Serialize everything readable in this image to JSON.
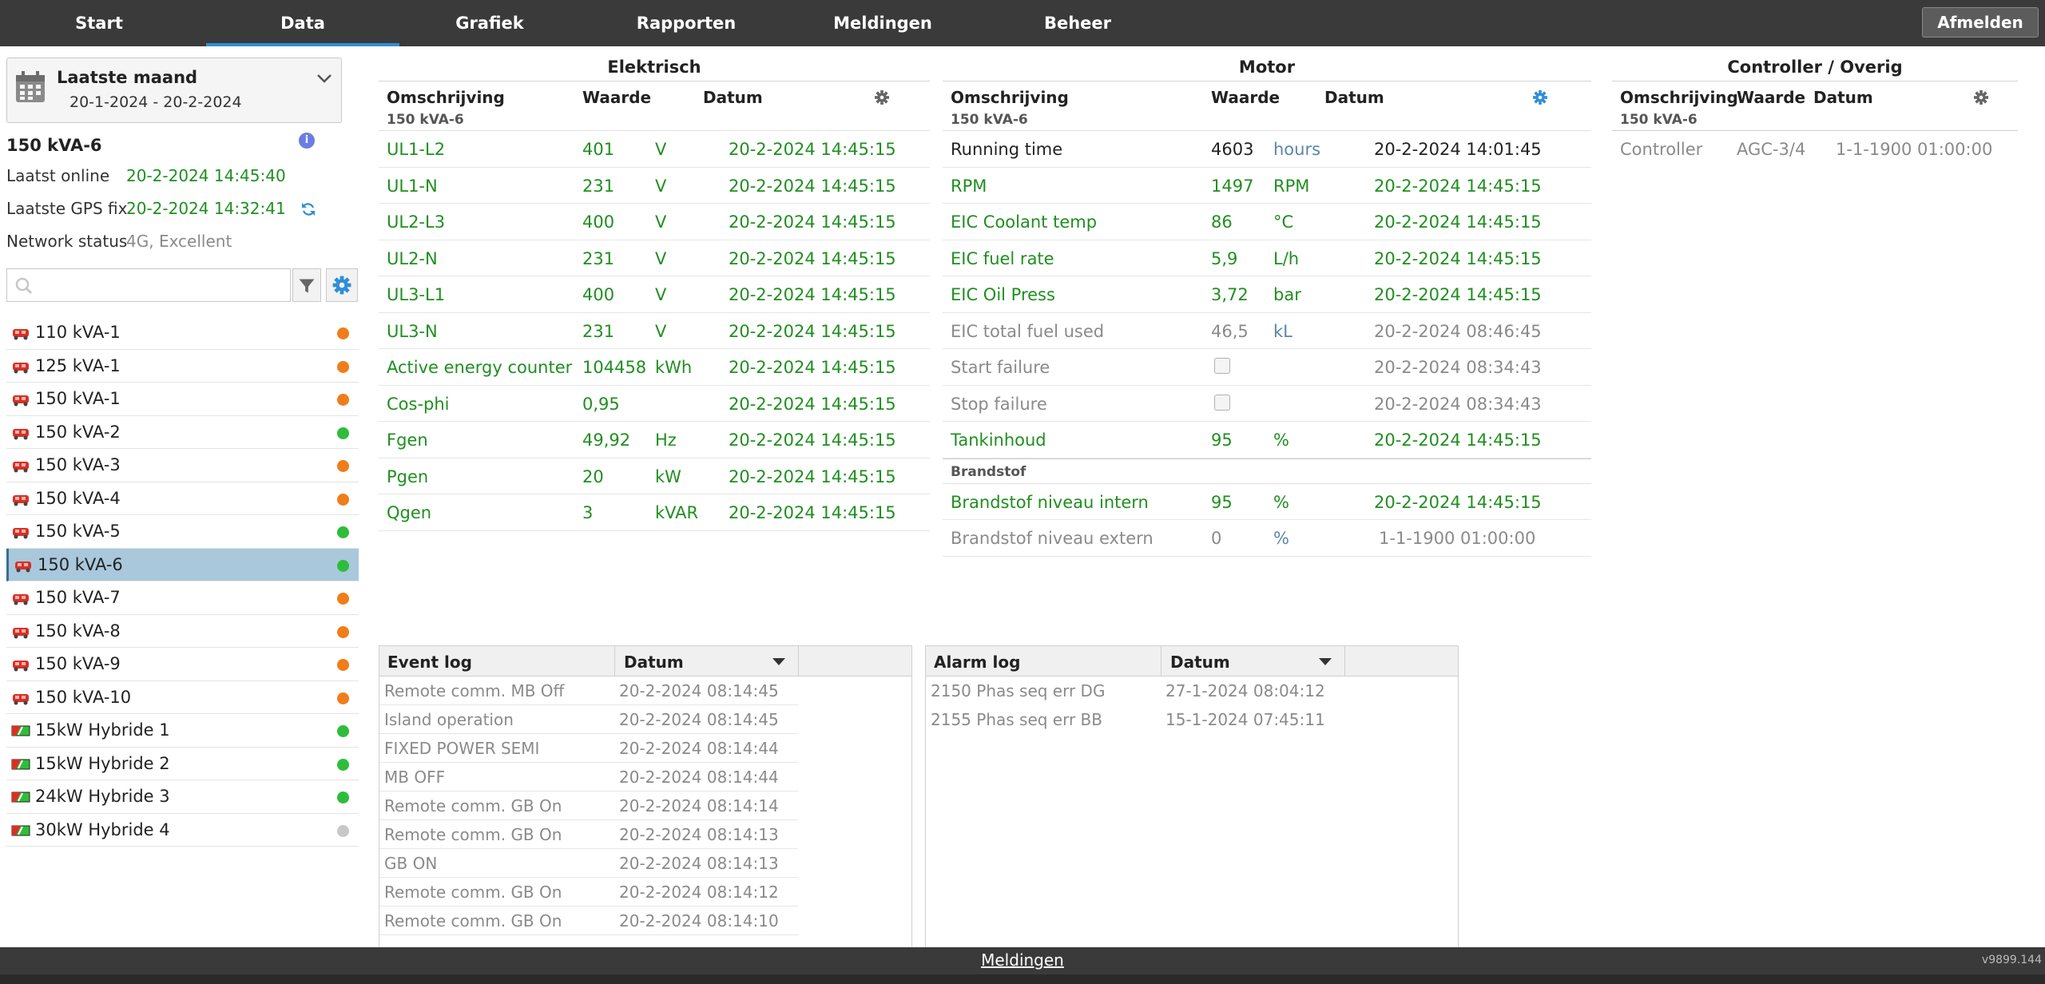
{
  "nav": {
    "tabs": [
      {
        "label": "Start"
      },
      {
        "label": "Data"
      },
      {
        "label": "Grafiek"
      },
      {
        "label": "Rapporten"
      },
      {
        "label": "Meldingen"
      },
      {
        "label": "Beheer"
      }
    ],
    "active": "Data",
    "logout_label": "Afmelden"
  },
  "sidebar": {
    "period_title": "Laatste maand",
    "period_range": "20-1-2024 - 20-2-2024",
    "unit_name": "150 kVA-6",
    "info_icon": "i",
    "last_online_label": "Laatst online",
    "last_online_value": "20-2-2024 14:45:40",
    "last_gps_label": "Laatste GPS fix",
    "last_gps_value": "20-2-2024 14:32:41",
    "network_label": "Network status",
    "network_value": "4G, Excellent",
    "search_placeholder": "",
    "units": [
      {
        "label": "110 kVA-1",
        "icon": "generator-icon",
        "status": "orange"
      },
      {
        "label": "125 kVA-1",
        "icon": "generator-icon",
        "status": "orange"
      },
      {
        "label": "150 kVA-1",
        "icon": "generator-icon",
        "status": "orange"
      },
      {
        "label": "150 kVA-2",
        "icon": "generator-icon",
        "status": "green"
      },
      {
        "label": "150 kVA-3",
        "icon": "generator-icon",
        "status": "orange"
      },
      {
        "label": "150 kVA-4",
        "icon": "generator-icon",
        "status": "orange"
      },
      {
        "label": "150 kVA-5",
        "icon": "generator-icon",
        "status": "green"
      },
      {
        "label": "150 kVA-6",
        "icon": "generator-icon",
        "status": "green",
        "selected": true
      },
      {
        "label": "150 kVA-7",
        "icon": "generator-icon",
        "status": "orange"
      },
      {
        "label": "150 kVA-8",
        "icon": "generator-icon",
        "status": "orange"
      },
      {
        "label": "150 kVA-9",
        "icon": "generator-icon",
        "status": "orange"
      },
      {
        "label": "150 kVA-10",
        "icon": "generator-icon",
        "status": "orange"
      },
      {
        "label": "15kW Hybride 1",
        "icon": "hybrid-icon",
        "status": "green"
      },
      {
        "label": "15kW Hybride 2",
        "icon": "hybrid-icon",
        "status": "green"
      },
      {
        "label": "24kW Hybride 3",
        "icon": "hybrid-icon",
        "status": "green"
      },
      {
        "label": "30kW Hybride 4",
        "icon": "hybrid-icon",
        "status": "grey"
      }
    ]
  },
  "colors": {
    "status_orange": "#f07d1a",
    "status_green": "#2ebd3a",
    "status_grey": "#c8c8c8",
    "value_green": "#1f8f1f",
    "value_grey": "#8a8a8a",
    "accent_blue": "#2f8fd6"
  },
  "elektrisch": {
    "title": "Elektrisch",
    "headers": {
      "desc": "Omschrijving",
      "value": "Waarde",
      "date": "Datum"
    },
    "group": "150 kVA-6",
    "rows": [
      {
        "desc": "UL1-L2",
        "value": "401",
        "unit": "V",
        "date": "20-2-2024 14:45:15",
        "color": "green"
      },
      {
        "desc": "UL1-N",
        "value": "231",
        "unit": "V",
        "date": "20-2-2024 14:45:15",
        "color": "green"
      },
      {
        "desc": "UL2-L3",
        "value": "400",
        "unit": "V",
        "date": "20-2-2024 14:45:15",
        "color": "green"
      },
      {
        "desc": "UL2-N",
        "value": "231",
        "unit": "V",
        "date": "20-2-2024 14:45:15",
        "color": "green"
      },
      {
        "desc": "UL3-L1",
        "value": "400",
        "unit": "V",
        "date": "20-2-2024 14:45:15",
        "color": "green"
      },
      {
        "desc": "UL3-N",
        "value": "231",
        "unit": "V",
        "date": "20-2-2024 14:45:15",
        "color": "green"
      },
      {
        "desc": "Active energy counter",
        "value": "104458",
        "unit": "kWh",
        "date": "20-2-2024 14:45:15",
        "color": "green"
      },
      {
        "desc": "Cos-phi",
        "value": "0,95",
        "unit": "",
        "date": "20-2-2024 14:45:15",
        "color": "green"
      },
      {
        "desc": "Fgen",
        "value": "49,92",
        "unit": "Hz",
        "date": "20-2-2024 14:45:15",
        "color": "green"
      },
      {
        "desc": "Pgen",
        "value": "20",
        "unit": "kW",
        "date": "20-2-2024 14:45:15",
        "color": "green"
      },
      {
        "desc": "Qgen",
        "value": "3",
        "unit": "kVAR",
        "date": "20-2-2024 14:45:15",
        "color": "green"
      }
    ]
  },
  "motor": {
    "title": "Motor",
    "headers": {
      "desc": "Omschrijving",
      "value": "Waarde",
      "date": "Datum"
    },
    "group": "150 kVA-6",
    "rows": [
      {
        "desc": "Running time",
        "value": "4603",
        "unit": "hours",
        "date": "20-2-2024 14:01:45",
        "color": "dark"
      },
      {
        "desc": "RPM",
        "value": "1497",
        "unit": "RPM",
        "date": "20-2-2024 14:45:15",
        "color": "green"
      },
      {
        "desc": "EIC Coolant temp",
        "value": "86",
        "unit": "°C",
        "date": "20-2-2024 14:45:15",
        "color": "green"
      },
      {
        "desc": "EIC fuel rate",
        "value": "5,9",
        "unit": "L/h",
        "date": "20-2-2024 14:45:15",
        "color": "green"
      },
      {
        "desc": "EIC Oil Press",
        "value": "3,72",
        "unit": "bar",
        "date": "20-2-2024 14:45:15",
        "color": "green"
      },
      {
        "desc": "EIC total fuel used",
        "value": "46,5",
        "unit": "kL",
        "date": "20-2-2024 08:46:45",
        "color": "grey"
      },
      {
        "desc": "Start failure",
        "value": "",
        "checkbox": true,
        "unit": "",
        "date": "20-2-2024 08:34:43",
        "color": "grey"
      },
      {
        "desc": "Stop failure",
        "value": "",
        "checkbox": true,
        "unit": "",
        "date": "20-2-2024 08:34:43",
        "color": "grey"
      },
      {
        "desc": "Tankinhoud",
        "value": "95",
        "unit": "%",
        "date": "20-2-2024 14:45:15",
        "color": "green"
      }
    ],
    "group2": "Brandstof",
    "rows2": [
      {
        "desc": "Brandstof niveau intern",
        "value": "95",
        "unit": "%",
        "date": "20-2-2024 14:45:15",
        "color": "green"
      },
      {
        "desc": "Brandstof niveau extern",
        "value": "0",
        "unit": "%",
        "date": "1-1-1900 01:00:00",
        "color": "grey"
      }
    ]
  },
  "controller": {
    "title": "Controller / Overig",
    "headers": {
      "desc": "Omschrijving",
      "value": "Waarde",
      "date": "Datum"
    },
    "group": "150 kVA-6",
    "rows": [
      {
        "desc": "Controller",
        "value": "AGC-3/4",
        "date": "1-1-1900 01:00:00",
        "color": "grey"
      }
    ]
  },
  "event_log": {
    "col1": "Event log",
    "col2": "Datum",
    "rows": [
      {
        "text": "Remote comm. MB Off",
        "date": "20-2-2024 08:14:45"
      },
      {
        "text": "Island operation",
        "date": "20-2-2024 08:14:45"
      },
      {
        "text": "FIXED POWER     SEMI",
        "date": "20-2-2024 08:14:44"
      },
      {
        "text": "MB OFF",
        "date": "20-2-2024 08:14:44"
      },
      {
        "text": "Remote comm. GB On",
        "date": "20-2-2024 08:14:14"
      },
      {
        "text": "Remote comm. GB On",
        "date": "20-2-2024 08:14:13"
      },
      {
        "text": "GB ON",
        "date": "20-2-2024 08:14:13"
      },
      {
        "text": "Remote comm. GB On",
        "date": "20-2-2024 08:14:12"
      },
      {
        "text": "Remote comm. GB On",
        "date": "20-2-2024 08:14:10"
      }
    ]
  },
  "alarm_log": {
    "col1": "Alarm log",
    "col2": "Datum",
    "rows": [
      {
        "text": "2150 Phas seq err DG",
        "date": "27-1-2024 08:04:12"
      },
      {
        "text": "2155 Phas seq err BB",
        "date": "15-1-2024 07:45:11"
      }
    ]
  },
  "footer": {
    "label": "Meldingen",
    "version": "v9899.144"
  }
}
